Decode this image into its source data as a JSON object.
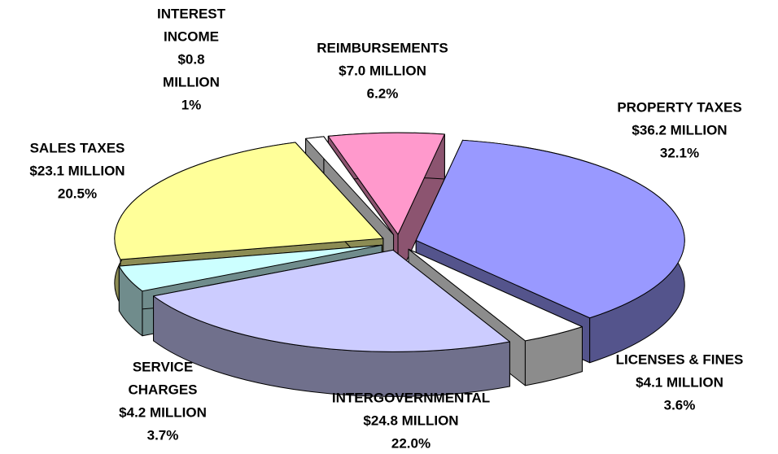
{
  "chart_data": {
    "type": "pie3d",
    "categories": [
      [
        "PROPERTY TAXES"
      ],
      [
        "LICENSES & FINES"
      ],
      [
        "INTERGOVERNMENTAL"
      ],
      [
        "SERVICE",
        "CHARGES"
      ],
      [
        "SALES TAXES"
      ],
      [
        "INTEREST",
        "INCOME"
      ],
      [
        "REIMBURSEMENTS"
      ]
    ],
    "amount_labels": [
      [
        "$36.2 MILLION"
      ],
      [
        "$4.1 MILLION"
      ],
      [
        "$24.8 MILLION"
      ],
      [
        "$4.2 MILLION"
      ],
      [
        "$23.1 MILLION"
      ],
      [
        "$0.8",
        "MILLION"
      ],
      [
        "$7.0 MILLION"
      ]
    ],
    "values": [
      32.1,
      3.6,
      22.0,
      3.7,
      20.5,
      1,
      6.2
    ],
    "value_labels": [
      "32.1%",
      "3.6%",
      "22.0%",
      "3.7%",
      "20.5%",
      "1%",
      "6.2%"
    ],
    "colors": [
      "#9999ff",
      "#ffffff",
      "#ccccff",
      "#ccffff",
      "#ffff99",
      "#ffffff",
      "#ff99cc"
    ]
  }
}
